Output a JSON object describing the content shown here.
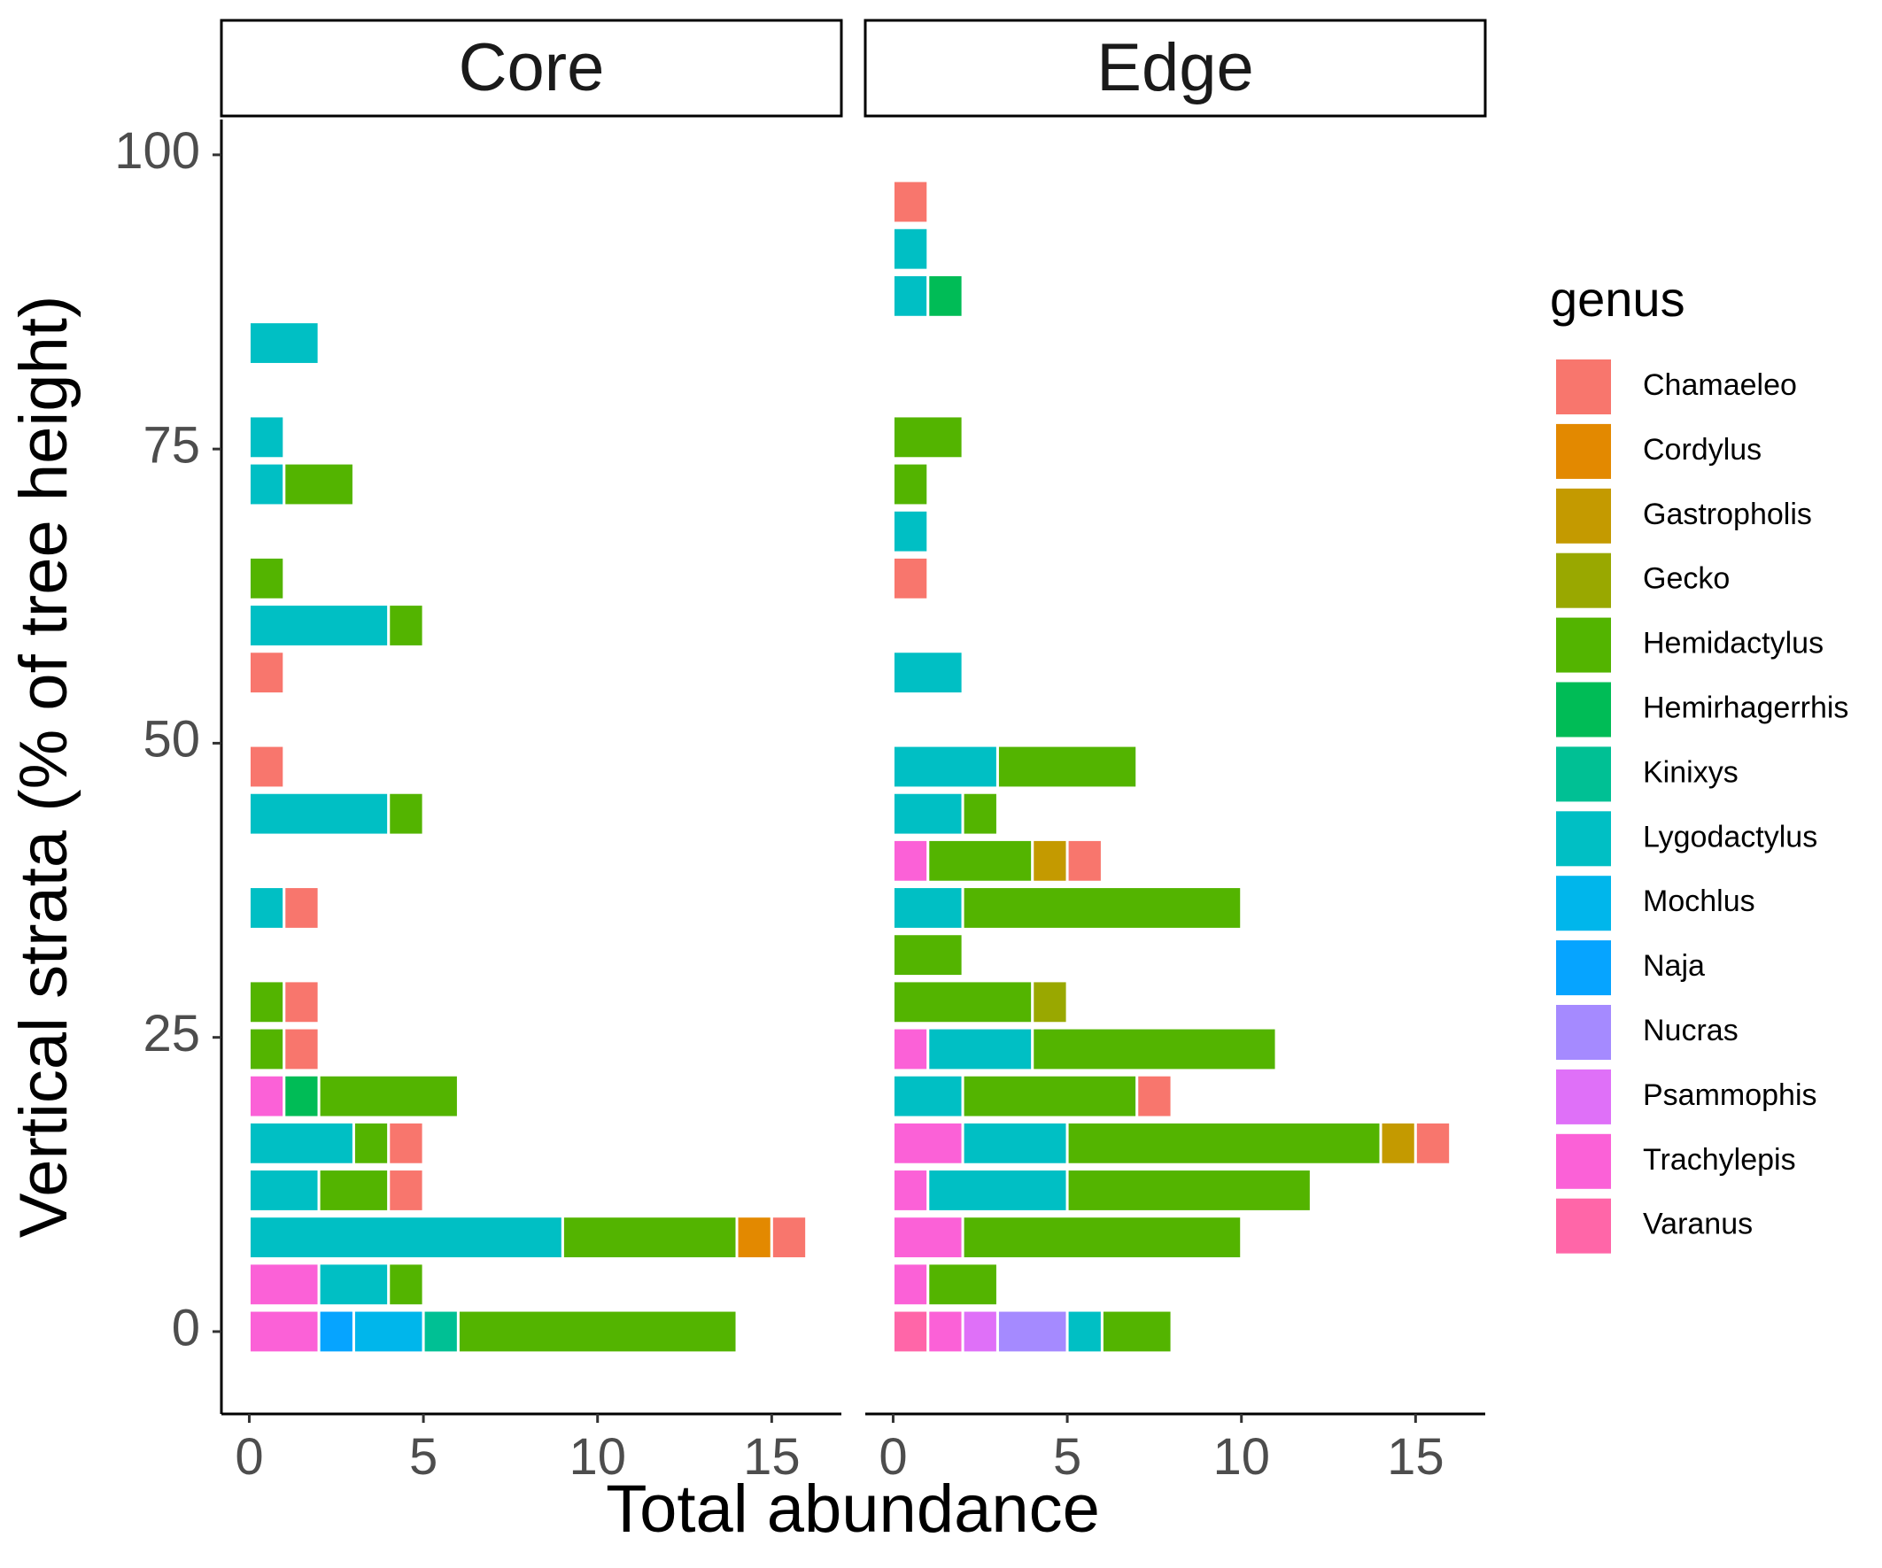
{
  "chart_data": {
    "type": "bar",
    "orientation": "horizontal",
    "stacked": true,
    "xlabel": "Total abundance",
    "ylabel": "Vertical strata (% of tree height)",
    "xlim": [
      -0.8,
      17.0
    ],
    "ylim": [
      -7,
      103
    ],
    "x_ticks": [
      "0",
      "5",
      "10",
      "15"
    ],
    "y_ticks": [
      "0",
      "25",
      "50",
      "75",
      "100"
    ],
    "grid": false,
    "legend": {
      "title": "genus",
      "position": "right",
      "entries": [
        {
          "name": "Chamaeleo",
          "color": "#F8766D"
        },
        {
          "name": "Cordylus",
          "color": "#E38900"
        },
        {
          "name": "Gastropholis",
          "color": "#C49A00"
        },
        {
          "name": "Gecko",
          "color": "#99A800"
        },
        {
          "name": "Hemidactylus",
          "color": "#53B400"
        },
        {
          "name": "Hemirhagerrhis",
          "color": "#00BC56"
        },
        {
          "name": "Kinixys",
          "color": "#00C094"
        },
        {
          "name": "Lygodactylus",
          "color": "#00BFC4"
        },
        {
          "name": "Mochlus",
          "color": "#00B6EB"
        },
        {
          "name": "Naja",
          "color": "#06A4FF"
        },
        {
          "name": "Nucras",
          "color": "#A58AFF"
        },
        {
          "name": "Psammophis",
          "color": "#DF70F8"
        },
        {
          "name": "Trachylepis",
          "color": "#FB61D7"
        },
        {
          "name": "Varanus",
          "color": "#FF66A8"
        }
      ]
    },
    "panels": [
      {
        "name": "Core",
        "rows": [
          {
            "y": 0,
            "segments": [
              {
                "genus": "Trachylepis",
                "value": 2
              },
              {
                "genus": "Naja",
                "value": 1
              },
              {
                "genus": "Mochlus",
                "value": 2
              },
              {
                "genus": "Kinixys",
                "value": 1
              },
              {
                "genus": "Hemidactylus",
                "value": 8
              }
            ]
          },
          {
            "y": 4,
            "segments": [
              {
                "genus": "Trachylepis",
                "value": 2
              },
              {
                "genus": "Lygodactylus",
                "value": 2
              },
              {
                "genus": "Hemidactylus",
                "value": 1
              }
            ]
          },
          {
            "y": 8,
            "segments": [
              {
                "genus": "Lygodactylus",
                "value": 9
              },
              {
                "genus": "Hemidactylus",
                "value": 5
              },
              {
                "genus": "Cordylus",
                "value": 1
              },
              {
                "genus": "Chamaeleo",
                "value": 1
              }
            ]
          },
          {
            "y": 12,
            "segments": [
              {
                "genus": "Lygodactylus",
                "value": 2
              },
              {
                "genus": "Hemidactylus",
                "value": 2
              },
              {
                "genus": "Chamaeleo",
                "value": 1
              }
            ]
          },
          {
            "y": 16,
            "segments": [
              {
                "genus": "Lygodactylus",
                "value": 3
              },
              {
                "genus": "Hemidactylus",
                "value": 1
              },
              {
                "genus": "Chamaeleo",
                "value": 1
              }
            ]
          },
          {
            "y": 20,
            "segments": [
              {
                "genus": "Trachylepis",
                "value": 1
              },
              {
                "genus": "Hemirhagerrhis",
                "value": 1
              },
              {
                "genus": "Hemidactylus",
                "value": 4
              }
            ]
          },
          {
            "y": 24,
            "segments": [
              {
                "genus": "Hemidactylus",
                "value": 1
              },
              {
                "genus": "Chamaeleo",
                "value": 1
              }
            ]
          },
          {
            "y": 28,
            "segments": [
              {
                "genus": "Hemidactylus",
                "value": 1
              },
              {
                "genus": "Chamaeleo",
                "value": 1
              }
            ]
          },
          {
            "y": 36,
            "segments": [
              {
                "genus": "Lygodactylus",
                "value": 1
              },
              {
                "genus": "Chamaeleo",
                "value": 1
              }
            ]
          },
          {
            "y": 44,
            "segments": [
              {
                "genus": "Lygodactylus",
                "value": 4
              },
              {
                "genus": "Hemidactylus",
                "value": 1
              }
            ]
          },
          {
            "y": 48,
            "segments": [
              {
                "genus": "Chamaeleo",
                "value": 1
              }
            ]
          },
          {
            "y": 56,
            "segments": [
              {
                "genus": "Chamaeleo",
                "value": 1
              }
            ]
          },
          {
            "y": 60,
            "segments": [
              {
                "genus": "Lygodactylus",
                "value": 4
              },
              {
                "genus": "Hemidactylus",
                "value": 1
              }
            ]
          },
          {
            "y": 64,
            "segments": [
              {
                "genus": "Hemidactylus",
                "value": 1
              }
            ]
          },
          {
            "y": 72,
            "segments": [
              {
                "genus": "Lygodactylus",
                "value": 1
              },
              {
                "genus": "Hemidactylus",
                "value": 2
              }
            ]
          },
          {
            "y": 76,
            "segments": [
              {
                "genus": "Lygodactylus",
                "value": 1
              }
            ]
          },
          {
            "y": 84,
            "segments": [
              {
                "genus": "Lygodactylus",
                "value": 2
              }
            ]
          }
        ]
      },
      {
        "name": "Edge",
        "rows": [
          {
            "y": 0,
            "segments": [
              {
                "genus": "Varanus",
                "value": 1
              },
              {
                "genus": "Trachylepis",
                "value": 1
              },
              {
                "genus": "Psammophis",
                "value": 1
              },
              {
                "genus": "Nucras",
                "value": 2
              },
              {
                "genus": "Lygodactylus",
                "value": 1
              },
              {
                "genus": "Hemidactylus",
                "value": 2
              }
            ]
          },
          {
            "y": 4,
            "segments": [
              {
                "genus": "Trachylepis",
                "value": 1
              },
              {
                "genus": "Hemidactylus",
                "value": 2
              }
            ]
          },
          {
            "y": 8,
            "segments": [
              {
                "genus": "Trachylepis",
                "value": 2
              },
              {
                "genus": "Hemidactylus",
                "value": 8
              }
            ]
          },
          {
            "y": 12,
            "segments": [
              {
                "genus": "Trachylepis",
                "value": 1
              },
              {
                "genus": "Lygodactylus",
                "value": 4
              },
              {
                "genus": "Hemidactylus",
                "value": 7
              }
            ]
          },
          {
            "y": 16,
            "segments": [
              {
                "genus": "Trachylepis",
                "value": 2
              },
              {
                "genus": "Lygodactylus",
                "value": 3
              },
              {
                "genus": "Hemidactylus",
                "value": 9
              },
              {
                "genus": "Gastropholis",
                "value": 1
              },
              {
                "genus": "Chamaeleo",
                "value": 1
              }
            ]
          },
          {
            "y": 20,
            "segments": [
              {
                "genus": "Lygodactylus",
                "value": 2
              },
              {
                "genus": "Hemidactylus",
                "value": 5
              },
              {
                "genus": "Chamaeleo",
                "value": 1
              }
            ]
          },
          {
            "y": 24,
            "segments": [
              {
                "genus": "Trachylepis",
                "value": 1
              },
              {
                "genus": "Lygodactylus",
                "value": 3
              },
              {
                "genus": "Hemidactylus",
                "value": 7
              }
            ]
          },
          {
            "y": 28,
            "segments": [
              {
                "genus": "Hemidactylus",
                "value": 4
              },
              {
                "genus": "Gecko",
                "value": 1
              }
            ]
          },
          {
            "y": 32,
            "segments": [
              {
                "genus": "Hemidactylus",
                "value": 2
              }
            ]
          },
          {
            "y": 36,
            "segments": [
              {
                "genus": "Lygodactylus",
                "value": 2
              },
              {
                "genus": "Hemidactylus",
                "value": 8
              }
            ]
          },
          {
            "y": 40,
            "segments": [
              {
                "genus": "Trachylepis",
                "value": 1
              },
              {
                "genus": "Hemidactylus",
                "value": 3
              },
              {
                "genus": "Gastropholis",
                "value": 1
              },
              {
                "genus": "Chamaeleo",
                "value": 1
              }
            ]
          },
          {
            "y": 44,
            "segments": [
              {
                "genus": "Lygodactylus",
                "value": 2
              },
              {
                "genus": "Hemidactylus",
                "value": 1
              }
            ]
          },
          {
            "y": 48,
            "segments": [
              {
                "genus": "Lygodactylus",
                "value": 3
              },
              {
                "genus": "Hemidactylus",
                "value": 4
              }
            ]
          },
          {
            "y": 56,
            "segments": [
              {
                "genus": "Lygodactylus",
                "value": 2
              }
            ]
          },
          {
            "y": 64,
            "segments": [
              {
                "genus": "Chamaeleo",
                "value": 1
              }
            ]
          },
          {
            "y": 68,
            "segments": [
              {
                "genus": "Lygodactylus",
                "value": 1
              }
            ]
          },
          {
            "y": 72,
            "segments": [
              {
                "genus": "Hemidactylus",
                "value": 1
              }
            ]
          },
          {
            "y": 76,
            "segments": [
              {
                "genus": "Hemidactylus",
                "value": 2
              }
            ]
          },
          {
            "y": 88,
            "segments": [
              {
                "genus": "Lygodactylus",
                "value": 1
              },
              {
                "genus": "Hemirhagerrhis",
                "value": 1
              }
            ]
          },
          {
            "y": 92,
            "segments": [
              {
                "genus": "Lygodactylus",
                "value": 1
              }
            ]
          },
          {
            "y": 96,
            "segments": [
              {
                "genus": "Chamaeleo",
                "value": 1
              }
            ]
          }
        ]
      }
    ]
  }
}
